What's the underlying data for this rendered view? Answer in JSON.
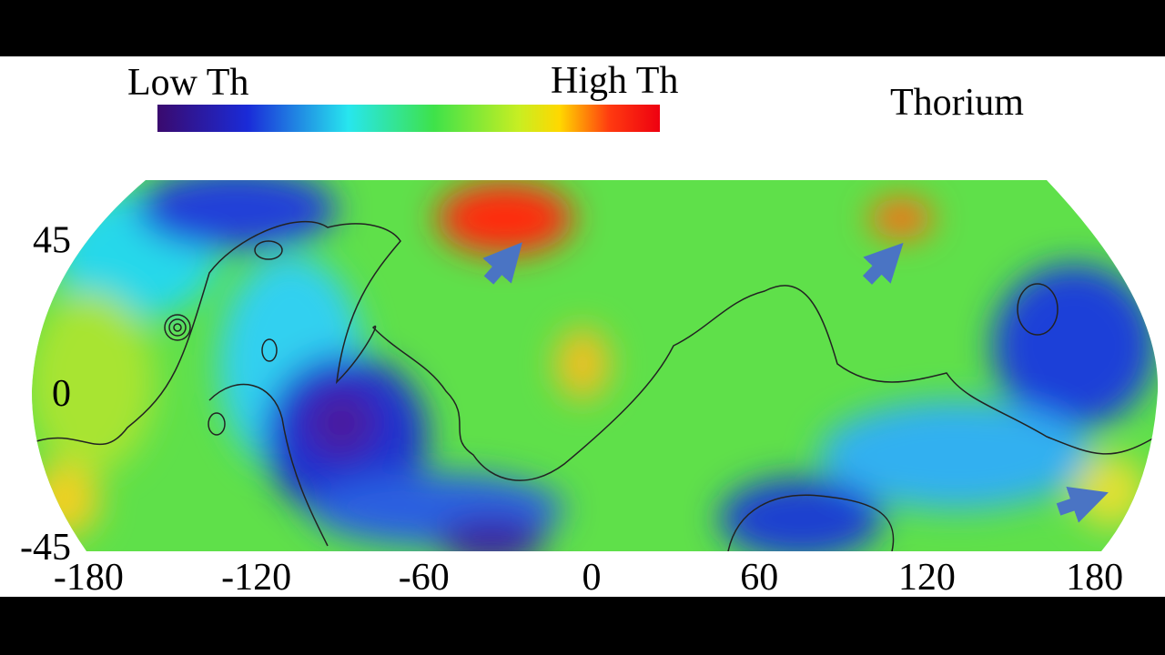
{
  "colorbar": {
    "low_label": "Low Th",
    "high_label": "High Th"
  },
  "title": "Thorium",
  "x_axis": {
    "ticks": [
      -180,
      -120,
      -60,
      0,
      60,
      120,
      180
    ]
  },
  "y_axis": {
    "ticks": [
      45,
      0,
      -45
    ]
  }
}
